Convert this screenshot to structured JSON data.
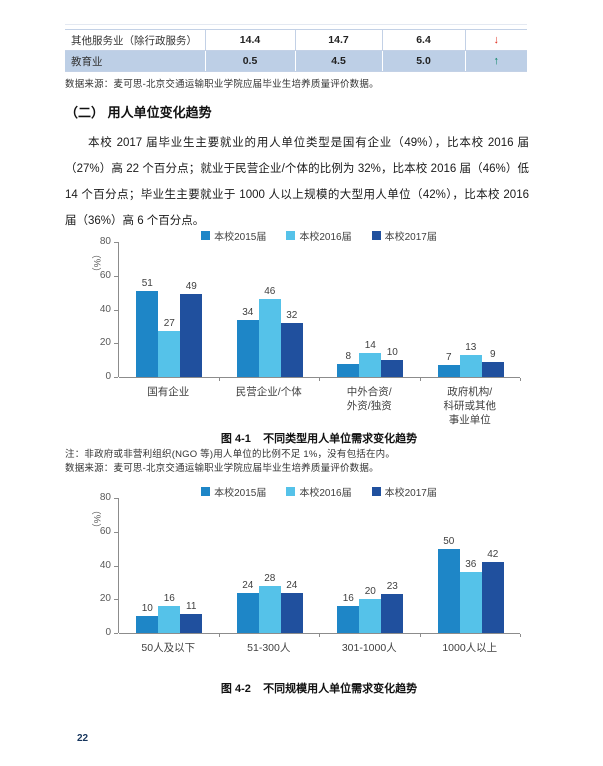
{
  "colors": {
    "trend_down": "#e02a1a",
    "trend_up": "#00825f",
    "series_2015": "#1e86c7",
    "series_2016": "#55c2e9",
    "series_2017": "#20509e",
    "shaded_row_bg": "#bdcfe6",
    "page_number": "#17365d"
  },
  "table": {
    "rows": [
      {
        "label": "其他服务业（除行政服务）",
        "v1": "14.4",
        "v2": "14.7",
        "v3": "6.4",
        "arrow": "↓",
        "trend": "down"
      },
      {
        "label": "教育业",
        "v1": "0.5",
        "v2": "4.5",
        "v3": "5.0",
        "arrow": "↑",
        "trend": "up"
      }
    ]
  },
  "notes": {
    "source": "数据来源：麦可思-北京交通运输职业学院应届毕业生培养质量评价数据。",
    "ngo_note": "注：非政府或非营利组织(NGO 等)用人单位的比例不足 1%，没有包括在内。"
  },
  "section": {
    "heading": "（二） 用人单位变化趋势",
    "paragraph": "本校 2017 届毕业生主要就业的用人单位类型是国有企业（49%），比本校 2016 届（27%）高 22 个百分点；就业于民营企业/个体的比例为 32%，比本校 2016 届（46%）低 14 个百分点；毕业生主要就业于 1000 人以上规模的大型用人单位（42%），比本校 2016 届（36%）高 6 个百分点。"
  },
  "chart_data": [
    {
      "type": "bar",
      "fig_label": "图 4-1",
      "fig_title": "不同类型用人单位需求变化趋势",
      "ylabel": "（%）",
      "ylim": [
        0,
        80
      ],
      "yticks": [
        0,
        20,
        40,
        60,
        80
      ],
      "legend_position": "top",
      "grid": false,
      "categories": [
        "国有企业",
        "民营企业/个体",
        "中外合资/外资/独资",
        "政府机构/科研或其他事业单位"
      ],
      "categories_display": [
        [
          "国有企业"
        ],
        [
          "民营企业/个体"
        ],
        [
          "中外合资/",
          "外资/独资"
        ],
        [
          "政府机构/",
          "科研或其他",
          "事业单位"
        ]
      ],
      "series": [
        {
          "name": "本校2015届",
          "color": "#1e86c7",
          "values": [
            51,
            34,
            8,
            7
          ]
        },
        {
          "name": "本校2016届",
          "color": "#55c2e9",
          "values": [
            27,
            46,
            14,
            13
          ]
        },
        {
          "name": "本校2017届",
          "color": "#20509e",
          "values": [
            49,
            32,
            10,
            9
          ]
        }
      ]
    },
    {
      "type": "bar",
      "fig_label": "图 4-2",
      "fig_title": "不同规模用人单位需求变化趋势",
      "ylabel": "（%）",
      "ylim": [
        0,
        80
      ],
      "yticks": [
        0,
        20,
        40,
        60,
        80
      ],
      "legend_position": "top",
      "grid": false,
      "categories": [
        "50人及以下",
        "51-300人",
        "301-1000人",
        "1000人以上"
      ],
      "categories_display": [
        [
          "50人及以下"
        ],
        [
          "51-300人"
        ],
        [
          "301-1000人"
        ],
        [
          "1000人以上"
        ]
      ],
      "series": [
        {
          "name": "本校2015届",
          "color": "#1e86c7",
          "values": [
            10,
            24,
            16,
            50
          ]
        },
        {
          "name": "本校2016届",
          "color": "#55c2e9",
          "values": [
            16,
            28,
            20,
            36
          ]
        },
        {
          "name": "本校2017届",
          "color": "#20509e",
          "values": [
            11,
            24,
            23,
            42
          ]
        }
      ]
    }
  ],
  "footer": {
    "page_number": "22"
  }
}
